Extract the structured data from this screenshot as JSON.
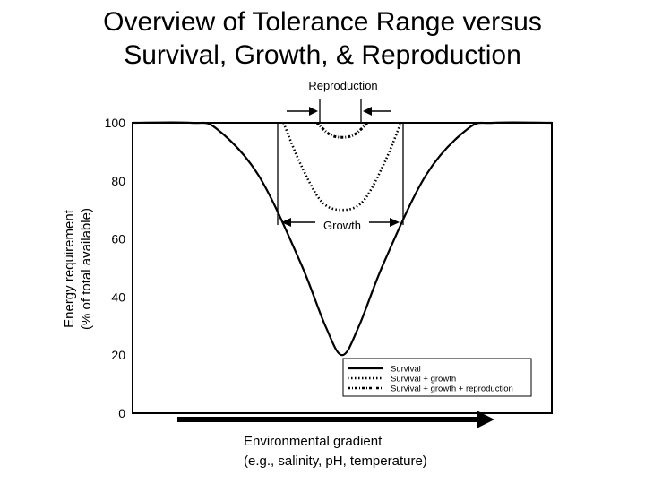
{
  "slide": {
    "title_line1": "Overview of Tolerance Range versus",
    "title_line2": "Survival, Growth, & Reproduction"
  },
  "chart_data": {
    "type": "line",
    "ylabel_line1": "Energy requirement",
    "ylabel_line2": "(% of total available)",
    "xlabel_line1": "Environmental gradient",
    "xlabel_line2": "(e.g., salinity, pH, temperature)",
    "ylim": [
      0,
      100
    ],
    "yticks": [
      "100",
      "80",
      "60",
      "40",
      "20",
      "0"
    ],
    "grid": false,
    "legend_position": "bottom-right",
    "annotations": {
      "reproduction": "Reproduction",
      "growth": "Growth"
    },
    "series": [
      {
        "name": "Survival",
        "style": "solid",
        "x": [
          0,
          0.14,
          0.2,
          0.3,
          0.4,
          0.46,
          0.5,
          0.54,
          0.6,
          0.7,
          0.8,
          0.86,
          1
        ],
        "y": [
          100,
          100,
          98,
          82,
          52,
          30,
          20,
          30,
          52,
          82,
          98,
          100,
          100
        ]
      },
      {
        "name": "Survival + growth",
        "style": "dotted",
        "x": [
          0.36,
          0.4,
          0.45,
          0.5,
          0.55,
          0.6,
          0.64
        ],
        "y": [
          100,
          86,
          73,
          70,
          73,
          86,
          100
        ]
      },
      {
        "name": "Survival + growth + reproduction",
        "style": "dash-dot",
        "x": [
          0.44,
          0.47,
          0.5,
          0.53,
          0.56
        ],
        "y": [
          100,
          96,
          95,
          96,
          100
        ]
      }
    ]
  }
}
